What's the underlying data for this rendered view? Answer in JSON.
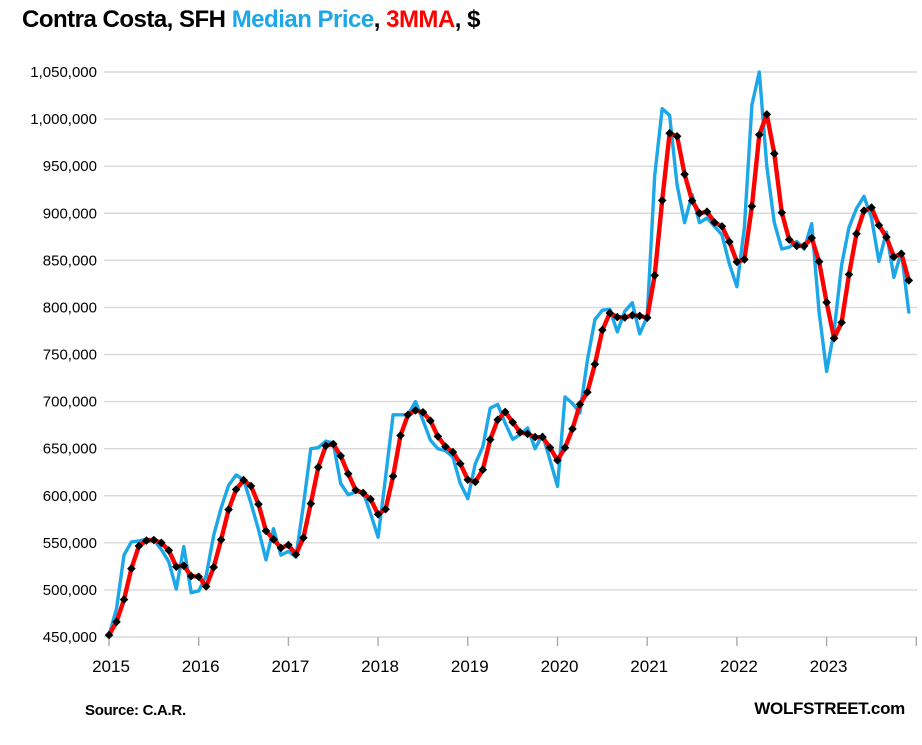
{
  "title": {
    "prefix": "Contra Costa, SFH ",
    "series1_label": "Median Price",
    "separator": ", ",
    "series2_label": "3MMA",
    "suffix": ", $"
  },
  "footer": {
    "source": "Source: C.A.R.",
    "brand": "WOLFSTREET.com"
  },
  "colors": {
    "median_price": "#1BA7E8",
    "mma": "#FF0000",
    "marker": "#000000",
    "grid": "#D9D9D9",
    "tick": "#ABABAB",
    "text": "#000000"
  },
  "chart_data": {
    "type": "line",
    "title": "Contra Costa, SFH Median Price, 3MMA, $",
    "frequency": "monthly",
    "x_range": [
      "2015-01",
      "2023-12"
    ],
    "x_tick_labels": [
      "2015",
      "2016",
      "2017",
      "2018",
      "2019",
      "2020",
      "2021",
      "2022",
      "2023"
    ],
    "y_ticks": [
      450000,
      500000,
      550000,
      600000,
      650000,
      700000,
      750000,
      800000,
      850000,
      900000,
      950000,
      1000000,
      1050000
    ],
    "y_tick_labels": [
      "450,000",
      "500,000",
      "550,000",
      "600,000",
      "650,000",
      "700,000",
      "750,000",
      "800,000",
      "850,000",
      "900,000",
      "950,000",
      "1,000,000",
      "1,050,000"
    ],
    "ylim": [
      450000,
      1050000
    ],
    "grid": "horizontal",
    "legend": "in-title",
    "series": [
      {
        "name": "Median Price",
        "color": "#1BA7E8",
        "values": [
          452000,
          480000,
          537000,
          551000,
          552000,
          554000,
          553000,
          543000,
          530000,
          501000,
          546000,
          497000,
          499000,
          515000,
          558000,
          587000,
          611000,
          622000,
          617000,
          592000,
          564000,
          532000,
          565000,
          537000,
          541000,
          535000,
          590000,
          650000,
          651000,
          658000,
          656000,
          613000,
          601000,
          604000,
          604000,
          581000,
          556000,
          620000,
          686000,
          686000,
          686000,
          700000,
          680000,
          659000,
          650000,
          648000,
          641000,
          613000,
          597000,
          634000,
          652000,
          693000,
          697000,
          677000,
          660000,
          665000,
          672000,
          650000,
          665000,
          638000,
          610000,
          705000,
          698000,
          688000,
          744000,
          787000,
          797000,
          798000,
          774000,
          796000,
          805000,
          772000,
          790000,
          940000,
          1011000,
          1004000,
          930000,
          890000,
          920000,
          890000,
          895000,
          886000,
          877000,
          846000,
          822000,
          885000,
          1015000,
          1050000,
          950000,
          890000,
          862000,
          864000,
          870000,
          862000,
          889000,
          795000,
          732000,
          775000,
          845000,
          885000,
          905000,
          918000,
          895000,
          849000,
          880000,
          832000,
          859000,
          795000
        ]
      },
      {
        "name": "3MMA",
        "color": "#FF0000",
        "marker": "diamond",
        "marker_color": "#000000",
        "derived": "3-month moving average of Median Price"
      }
    ]
  }
}
